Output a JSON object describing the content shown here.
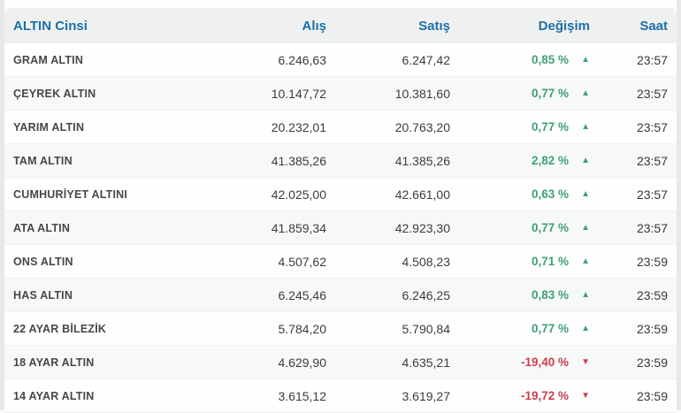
{
  "table": {
    "columns": {
      "name": "ALTIN Cinsi",
      "buy": "Alış",
      "sell": "Satış",
      "change": "Değişim",
      "time": "Saat"
    },
    "rows": [
      {
        "name": "GRAM ALTIN",
        "buy": "6.246,63",
        "sell": "6.247,42",
        "change": "0,85 %",
        "direction": "up",
        "time": "23:57"
      },
      {
        "name": "ÇEYREK ALTIN",
        "buy": "10.147,72",
        "sell": "10.381,60",
        "change": "0,77 %",
        "direction": "up",
        "time": "23:57"
      },
      {
        "name": "YARIM ALTIN",
        "buy": "20.232,01",
        "sell": "20.763,20",
        "change": "0,77 %",
        "direction": "up",
        "time": "23:57"
      },
      {
        "name": "TAM ALTIN",
        "buy": "41.385,26",
        "sell": "41.385,26",
        "change": "2,82 %",
        "direction": "up",
        "time": "23:57"
      },
      {
        "name": "CUMHURİYET ALTINI",
        "buy": "42.025,00",
        "sell": "42.661,00",
        "change": "0,63 %",
        "direction": "up",
        "time": "23:57"
      },
      {
        "name": "ATA ALTIN",
        "buy": "41.859,34",
        "sell": "42.923,30",
        "change": "0,77 %",
        "direction": "up",
        "time": "23:57"
      },
      {
        "name": "ONS ALTIN",
        "buy": "4.507,62",
        "sell": "4.508,23",
        "change": "0,71 %",
        "direction": "up",
        "time": "23:59"
      },
      {
        "name": "HAS ALTIN",
        "buy": "6.245,46",
        "sell": "6.246,25",
        "change": "0,83 %",
        "direction": "up",
        "time": "23:59"
      },
      {
        "name": "22 AYAR BİLEZİK",
        "buy": "5.784,20",
        "sell": "5.790,84",
        "change": "0,77 %",
        "direction": "up",
        "time": "23:59"
      },
      {
        "name": "18 AYAR ALTIN",
        "buy": "4.629,90",
        "sell": "4.635,21",
        "change": "-19,40 %",
        "direction": "down",
        "time": "23:59"
      },
      {
        "name": "14 AYAR ALTIN",
        "buy": "3.615,12",
        "sell": "3.619,27",
        "change": "-19,72 %",
        "direction": "down",
        "time": "23:59"
      }
    ]
  },
  "icons": {
    "up": "▲",
    "down": "▼"
  },
  "colors": {
    "header_text": "#1d6fa8",
    "header_bg": "#eff1f1",
    "positive": "#3fa173",
    "negative": "#cb3e4e",
    "row_alt_bg": "#f7f8f8"
  }
}
